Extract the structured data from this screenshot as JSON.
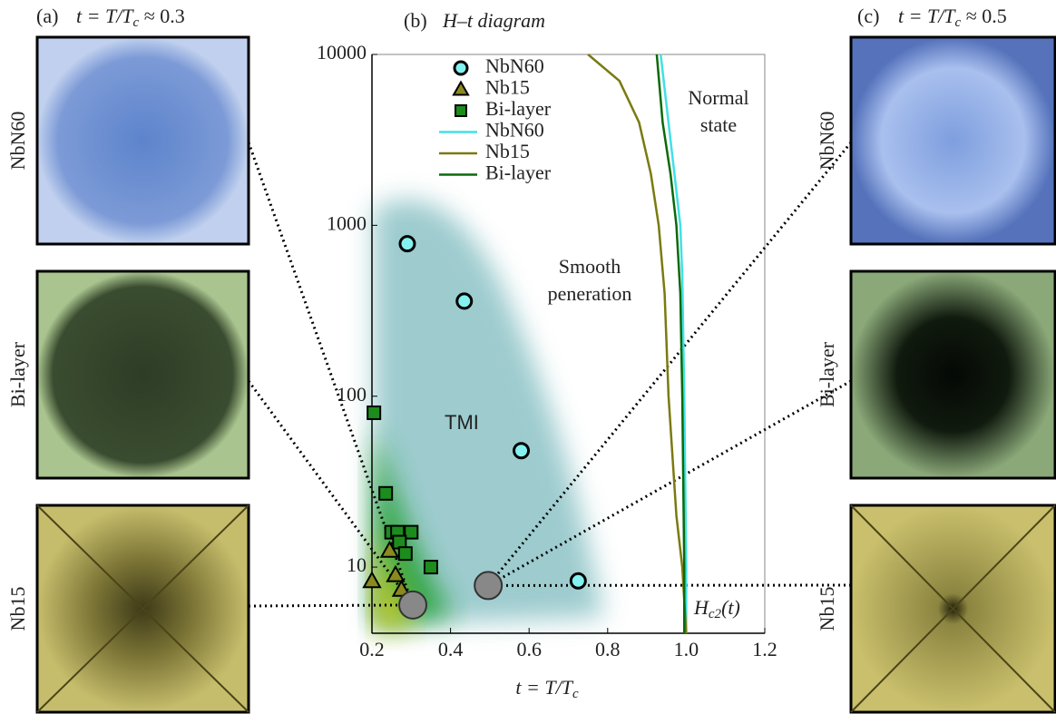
{
  "chart_data": {
    "type": "scatter",
    "panel_label": "(b)",
    "title": "H–t diagram",
    "xlabel": [
      "t = T/T",
      "c"
    ],
    "yscale": "log",
    "xlim": [
      0.2,
      1.2
    ],
    "ylim": [
      4.1,
      10000
    ],
    "xticks": [
      0.2,
      0.4,
      0.6,
      0.8,
      {
        "value": 1,
        "label": "1.0"
      },
      1.2
    ],
    "yticks": [
      10,
      100,
      1000,
      10000
    ],
    "series": [
      {
        "name": "NbN60",
        "kind": "marker",
        "marker": "circle",
        "color": "#84f0f0",
        "x": [
          0.29,
          0.435,
          0.58,
          0.725
        ],
        "values": [
          780,
          360,
          48,
          8.3
        ]
      },
      {
        "name": "Nb15",
        "kind": "marker",
        "marker": "triangle",
        "color": "#8a8a1e",
        "x": [
          0.2,
          0.245,
          0.26,
          0.275
        ],
        "values": [
          8.3,
          12.5,
          9,
          7.4
        ]
      },
      {
        "name": "Bi-layer",
        "kind": "marker",
        "marker": "square",
        "color": "#1c8c1c",
        "x": [
          0.205,
          0.235,
          0.25,
          0.265,
          0.3,
          0.27,
          0.285,
          0.35
        ],
        "values": [
          80,
          27,
          16,
          16,
          16,
          14,
          12,
          10
        ]
      },
      {
        "name": "NbN60",
        "kind": "line",
        "color": "#40e0e8",
        "x": [
          0.935,
          0.95,
          0.97,
          0.985,
          0.99,
          0.995,
          1,
          1
        ],
        "values": [
          10000,
          5000,
          2000,
          1000,
          500,
          100,
          10,
          4.1
        ]
      },
      {
        "name": "Nb15",
        "kind": "line",
        "color": "#7a7a10",
        "x": [
          0.75,
          0.83,
          0.88,
          0.91,
          0.93,
          0.945,
          0.955,
          0.975,
          0.99,
          1
        ],
        "values": [
          10000,
          7000,
          4000,
          2000,
          1000,
          400,
          100,
          20,
          10,
          4.1
        ]
      },
      {
        "name": "Bi-layer",
        "kind": "line",
        "color": "#0a6a0a",
        "x": [
          0.925,
          0.94,
          0.96,
          0.975,
          0.985,
          0.99,
          0.995,
          0.995
        ],
        "values": [
          10000,
          4000,
          2000,
          1000,
          400,
          100,
          10,
          4.1
        ]
      }
    ],
    "highlighted": {
      "color": "#888888",
      "x": [
        0.304,
        0.496
      ],
      "values": [
        6,
        7.8
      ]
    },
    "annotations": {
      "tmi": "TMI",
      "smooth": [
        "Smooth",
        "peneration"
      ],
      "normal": [
        "Normal",
        "state"
      ],
      "hc2": [
        "H",
        "c2",
        "(t)"
      ]
    }
  },
  "panels": {
    "a": {
      "label": "(a)",
      "t_text": [
        "t = T/T",
        "c",
        " ≈ 0.3"
      ],
      "images": [
        "NbN60",
        "Bi-layer",
        "Nb15"
      ]
    },
    "c": {
      "label": "(c)",
      "t_text": [
        "t = T/T",
        "c",
        " ≈ 0.5"
      ],
      "images": [
        "NbN60",
        "Bi-layer",
        "Nb15"
      ]
    }
  }
}
